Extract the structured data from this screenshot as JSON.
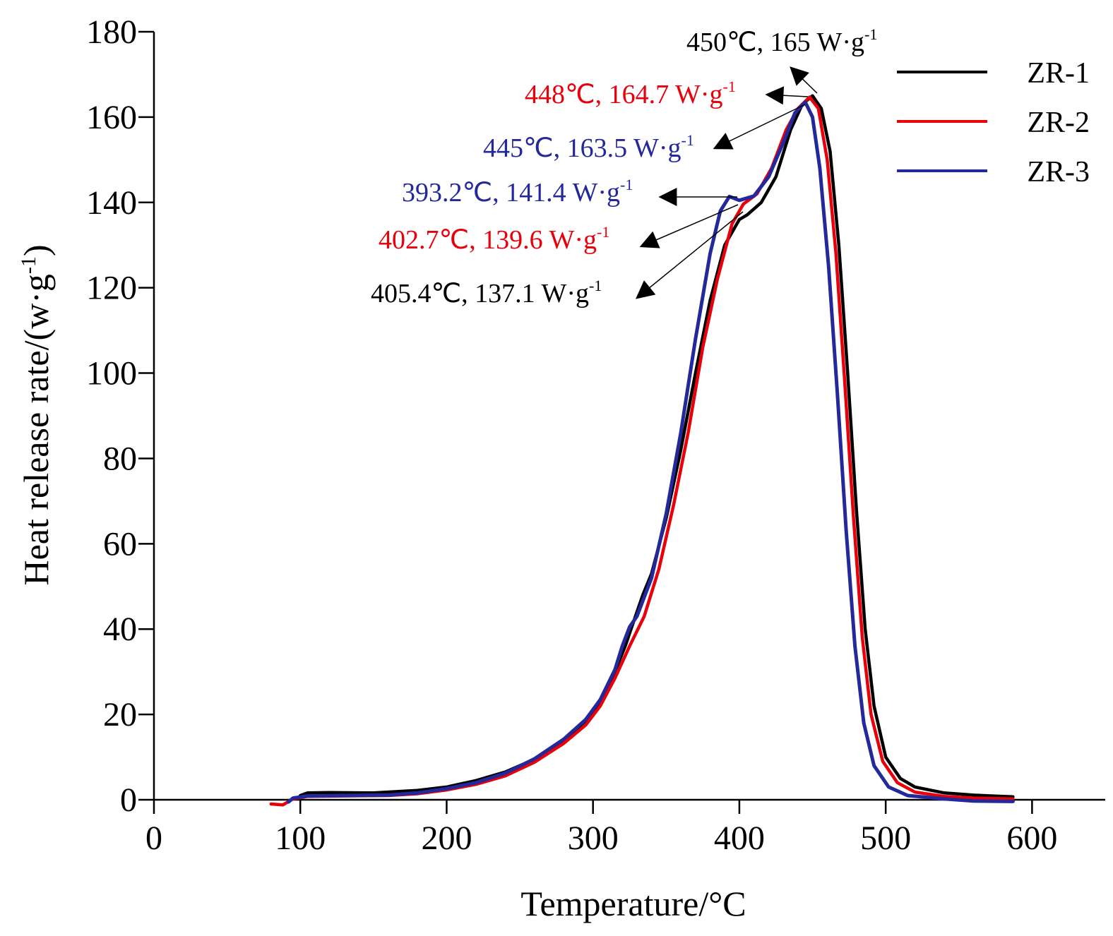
{
  "chart_data": {
    "type": "line",
    "title": "",
    "xlabel": "Temperature/°C",
    "ylabel": "Heat release rate/(w·g",
    "ylabel_sup": "-1",
    "ylabel_close": ")",
    "xlim": [
      0,
      650
    ],
    "ylim": [
      0,
      180
    ],
    "xticks": [
      0,
      100,
      200,
      300,
      400,
      500,
      600
    ],
    "yticks": [
      0,
      20,
      40,
      60,
      80,
      100,
      120,
      140,
      160,
      180
    ],
    "grid": false,
    "legend_position": "top-right",
    "series": [
      {
        "name": "ZR-1",
        "color": "#000000",
        "points": [
          [
            100,
            1
          ],
          [
            105,
            1.6
          ],
          [
            120,
            1.7
          ],
          [
            150,
            1.6
          ],
          [
            180,
            2.2
          ],
          [
            200,
            3
          ],
          [
            220,
            4.5
          ],
          [
            240,
            6.5
          ],
          [
            260,
            9.5
          ],
          [
            280,
            14
          ],
          [
            295,
            18.5
          ],
          [
            305,
            23
          ],
          [
            315,
            30
          ],
          [
            322,
            36
          ],
          [
            328,
            42
          ],
          [
            334,
            48
          ],
          [
            340,
            53
          ],
          [
            350,
            66
          ],
          [
            360,
            82
          ],
          [
            370,
            100
          ],
          [
            380,
            117
          ],
          [
            390,
            130
          ],
          [
            400,
            136
          ],
          [
            405.4,
            137.1
          ],
          [
            415,
            140
          ],
          [
            425,
            146
          ],
          [
            435,
            157
          ],
          [
            443,
            163
          ],
          [
            450,
            165
          ],
          [
            456,
            162
          ],
          [
            462,
            152
          ],
          [
            468,
            130
          ],
          [
            474,
            100
          ],
          [
            480,
            68
          ],
          [
            486,
            40
          ],
          [
            492,
            22
          ],
          [
            500,
            10
          ],
          [
            510,
            5
          ],
          [
            520,
            3
          ],
          [
            540,
            1.6
          ],
          [
            560,
            1.1
          ],
          [
            587,
            0.7
          ]
        ]
      },
      {
        "name": "ZR-2",
        "color": "#e8000b",
        "points": [
          [
            80,
            -1
          ],
          [
            88,
            -1.2
          ],
          [
            95,
            0.2
          ],
          [
            105,
            0.8
          ],
          [
            130,
            0.9
          ],
          [
            160,
            1
          ],
          [
            180,
            1.4
          ],
          [
            200,
            2.3
          ],
          [
            220,
            3.6
          ],
          [
            240,
            5.6
          ],
          [
            260,
            8.8
          ],
          [
            280,
            13.2
          ],
          [
            295,
            17.5
          ],
          [
            305,
            22
          ],
          [
            315,
            28.5
          ],
          [
            325,
            36
          ],
          [
            335,
            43
          ],
          [
            345,
            54
          ],
          [
            355,
            69
          ],
          [
            365,
            86
          ],
          [
            375,
            106
          ],
          [
            385,
            122
          ],
          [
            395,
            135
          ],
          [
            402.7,
            139.6
          ],
          [
            412,
            142
          ],
          [
            422,
            148
          ],
          [
            432,
            157
          ],
          [
            440,
            162
          ],
          [
            448,
            164.7
          ],
          [
            454,
            162
          ],
          [
            460,
            150
          ],
          [
            466,
            128
          ],
          [
            472,
            98
          ],
          [
            478,
            66
          ],
          [
            484,
            38
          ],
          [
            490,
            20
          ],
          [
            498,
            9
          ],
          [
            508,
            4
          ],
          [
            520,
            1.8
          ],
          [
            540,
            0.8
          ],
          [
            560,
            0.4
          ],
          [
            587,
            0.2
          ]
        ]
      },
      {
        "name": "ZR-3",
        "color": "#23289a",
        "points": [
          [
            92,
            -0.5
          ],
          [
            95,
            0.4
          ],
          [
            105,
            0.9
          ],
          [
            130,
            1
          ],
          [
            160,
            1.1
          ],
          [
            180,
            1.6
          ],
          [
            200,
            2.6
          ],
          [
            220,
            4
          ],
          [
            240,
            6.2
          ],
          [
            260,
            9.6
          ],
          [
            280,
            14.2
          ],
          [
            295,
            18.8
          ],
          [
            305,
            23.5
          ],
          [
            315,
            30.5
          ],
          [
            320,
            36
          ],
          [
            325,
            40.5
          ],
          [
            330,
            43
          ],
          [
            340,
            52
          ],
          [
            350,
            67
          ],
          [
            360,
            86
          ],
          [
            370,
            108
          ],
          [
            380,
            128
          ],
          [
            387,
            138
          ],
          [
            393.2,
            141.4
          ],
          [
            400,
            140.5
          ],
          [
            410,
            141.5
          ],
          [
            420,
            146
          ],
          [
            430,
            154
          ],
          [
            438,
            161
          ],
          [
            445,
            163.5
          ],
          [
            450,
            160
          ],
          [
            455,
            148
          ],
          [
            461,
            125
          ],
          [
            467,
            95
          ],
          [
            473,
            63
          ],
          [
            479,
            36
          ],
          [
            485,
            18
          ],
          [
            492,
            8
          ],
          [
            502,
            3
          ],
          [
            515,
            1
          ],
          [
            540,
            0.2
          ],
          [
            560,
            -0.3
          ],
          [
            587,
            -0.4
          ]
        ]
      }
    ],
    "annotations": [
      {
        "text": "450℃, 165 W·g",
        "sup": "-1",
        "color": "#000000",
        "x": 450,
        "y": 165
      },
      {
        "text": "448℃, 164.7 W·g",
        "sup": "-1",
        "color": "#e8000b",
        "x": 448,
        "y": 164.7
      },
      {
        "text": "445℃, 163.5 W·g",
        "sup": "-1",
        "color": "#23289a",
        "x": 445,
        "y": 163.5
      },
      {
        "text": "393.2℃, 141.4 W·g",
        "sup": "-1",
        "color": "#23289a",
        "x": 393.2,
        "y": 141.4
      },
      {
        "text": "402.7℃, 139.6 W·g",
        "sup": "-1",
        "color": "#e8000b",
        "x": 402.7,
        "y": 139.6
      },
      {
        "text": "405.4℃, 137.1 W·g",
        "sup": "-1",
        "color": "#000000",
        "x": 405.4,
        "y": 137.1
      }
    ]
  }
}
